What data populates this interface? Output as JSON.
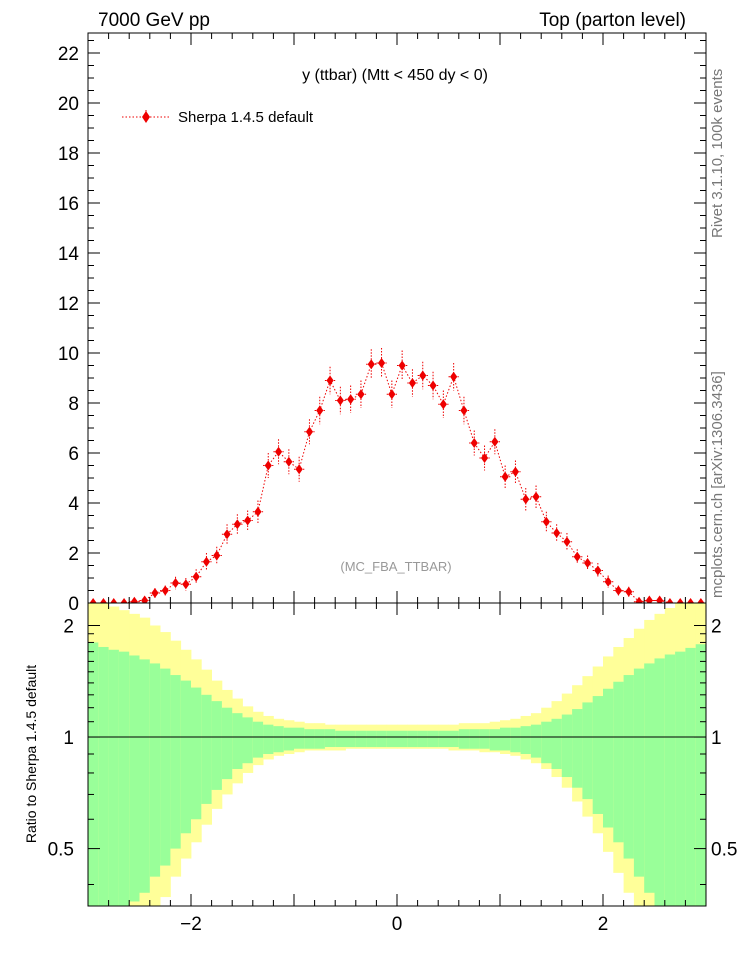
{
  "header": {
    "left": "7000 GeV pp",
    "right": "Top (parton level)"
  },
  "side_text": {
    "rivet": "Rivet 3.1.10,  100k events",
    "source": "mcplots.cern.ch [arXiv:1306.3436]"
  },
  "chart_data": [
    {
      "type": "scatter",
      "title": "y (ttbar) (Mtt < 450 dy < 0)",
      "watermark": "(MC_FBA_TTBAR)",
      "xlim": [
        -3.0,
        3.0
      ],
      "ylim": [
        0,
        22.8
      ],
      "y_ticks": [
        0,
        2,
        4,
        6,
        8,
        10,
        12,
        14,
        16,
        18,
        20,
        22
      ],
      "legend_position": "top-left",
      "series": [
        {
          "name": "Sherpa 1.4.5 default",
          "color": "#ee0000",
          "bin_width": 0.1,
          "x": [
            -2.95,
            -2.85,
            -2.75,
            -2.65,
            -2.55,
            -2.45,
            -2.35,
            -2.25,
            -2.15,
            -2.05,
            -1.95,
            -1.85,
            -1.75,
            -1.65,
            -1.55,
            -1.45,
            -1.35,
            -1.25,
            -1.15,
            -1.05,
            -0.95,
            -0.85,
            -0.75,
            -0.65,
            -0.55,
            -0.45,
            -0.35,
            -0.25,
            -0.15,
            -0.05,
            0.05,
            0.15,
            0.25,
            0.35,
            0.45,
            0.55,
            0.65,
            0.75,
            0.85,
            0.95,
            1.05,
            1.15,
            1.25,
            1.35,
            1.45,
            1.55,
            1.65,
            1.75,
            1.85,
            1.95,
            2.05,
            2.15,
            2.25,
            2.35,
            2.45,
            2.55,
            2.65,
            2.75,
            2.85,
            2.95
          ],
          "y": [
            0.0,
            0.0,
            0.0,
            0.0,
            0.05,
            0.1,
            0.4,
            0.5,
            0.8,
            0.75,
            1.05,
            1.65,
            1.9,
            2.75,
            3.15,
            3.3,
            3.65,
            5.5,
            6.05,
            5.65,
            5.35,
            6.85,
            7.7,
            8.9,
            8.1,
            8.15,
            8.35,
            9.55,
            9.6,
            8.35,
            9.5,
            8.8,
            9.1,
            8.7,
            7.95,
            9.05,
            7.7,
            6.4,
            5.8,
            6.45,
            5.05,
            5.25,
            4.15,
            4.25,
            3.25,
            2.8,
            2.45,
            1.85,
            1.6,
            1.3,
            0.85,
            0.5,
            0.45,
            0.05,
            0.1,
            0.1,
            0.0,
            0.0,
            0.0,
            0.0
          ],
          "yerr": [
            0.05,
            0.05,
            0.05,
            0.05,
            0.1,
            0.15,
            0.2,
            0.2,
            0.25,
            0.25,
            0.3,
            0.35,
            0.35,
            0.4,
            0.4,
            0.4,
            0.45,
            0.5,
            0.5,
            0.5,
            0.5,
            0.5,
            0.55,
            0.55,
            0.55,
            0.55,
            0.55,
            0.6,
            0.6,
            0.55,
            0.6,
            0.55,
            0.55,
            0.55,
            0.55,
            0.55,
            0.55,
            0.5,
            0.5,
            0.5,
            0.45,
            0.45,
            0.45,
            0.45,
            0.4,
            0.35,
            0.35,
            0.3,
            0.3,
            0.3,
            0.25,
            0.2,
            0.2,
            0.1,
            0.1,
            0.1,
            0.05,
            0.05,
            0.05,
            0.05
          ]
        }
      ]
    },
    {
      "type": "area",
      "ylabel": "Ratio to Sherpa 1.4.5 default",
      "xlim": [
        -3.0,
        3.0
      ],
      "ylim": [
        0.35,
        2.3
      ],
      "x_ticks": [
        -2,
        0,
        2
      ],
      "x_tick_labels": [
        "−2",
        "0",
        "2"
      ],
      "y_ticks": [
        0.5,
        1,
        2
      ],
      "y_tick_labels": [
        "0.5",
        "1",
        "2"
      ],
      "reference_line": 1,
      "band_colors": {
        "inner": "#99ff99",
        "outer": "#ffff99"
      },
      "x": [
        -2.95,
        -2.85,
        -2.75,
        -2.65,
        -2.55,
        -2.45,
        -2.35,
        -2.25,
        -2.15,
        -2.05,
        -1.95,
        -1.85,
        -1.75,
        -1.65,
        -1.55,
        -1.45,
        -1.35,
        -1.25,
        -1.15,
        -1.05,
        -0.95,
        -0.85,
        -0.75,
        -0.65,
        -0.55,
        -0.45,
        -0.35,
        -0.25,
        -0.15,
        -0.05,
        0.05,
        0.15,
        0.25,
        0.35,
        0.45,
        0.55,
        0.65,
        0.75,
        0.85,
        0.95,
        1.05,
        1.15,
        1.25,
        1.35,
        1.45,
        1.55,
        1.65,
        1.75,
        1.85,
        1.95,
        2.05,
        2.15,
        2.25,
        2.35,
        2.45,
        2.55,
        2.65,
        2.75,
        2.85,
        2.95
      ],
      "inner_upper": [
        1.8,
        1.75,
        1.72,
        1.7,
        1.66,
        1.62,
        1.58,
        1.53,
        1.47,
        1.42,
        1.36,
        1.3,
        1.25,
        1.2,
        1.16,
        1.13,
        1.1,
        1.08,
        1.07,
        1.06,
        1.06,
        1.05,
        1.05,
        1.05,
        1.04,
        1.04,
        1.04,
        1.04,
        1.04,
        1.04,
        1.04,
        1.04,
        1.04,
        1.04,
        1.04,
        1.04,
        1.05,
        1.05,
        1.05,
        1.05,
        1.06,
        1.06,
        1.07,
        1.08,
        1.1,
        1.12,
        1.15,
        1.19,
        1.24,
        1.29,
        1.35,
        1.41,
        1.47,
        1.53,
        1.58,
        1.63,
        1.67,
        1.7,
        1.74,
        1.78
      ],
      "inner_lower": [
        0.28,
        0.3,
        0.32,
        0.34,
        0.36,
        0.38,
        0.42,
        0.45,
        0.5,
        0.55,
        0.6,
        0.66,
        0.72,
        0.77,
        0.82,
        0.85,
        0.88,
        0.9,
        0.91,
        0.92,
        0.93,
        0.93,
        0.93,
        0.94,
        0.94,
        0.94,
        0.94,
        0.94,
        0.94,
        0.94,
        0.94,
        0.94,
        0.94,
        0.94,
        0.94,
        0.94,
        0.93,
        0.93,
        0.93,
        0.92,
        0.92,
        0.91,
        0.9,
        0.88,
        0.85,
        0.82,
        0.78,
        0.73,
        0.68,
        0.62,
        0.57,
        0.52,
        0.47,
        0.42,
        0.38,
        0.35,
        0.32,
        0.3,
        0.29,
        0.28
      ],
      "outer_upper": [
        2.3,
        2.3,
        2.25,
        2.2,
        2.15,
        2.1,
        2.0,
        1.92,
        1.82,
        1.72,
        1.62,
        1.52,
        1.42,
        1.34,
        1.27,
        1.21,
        1.17,
        1.14,
        1.12,
        1.11,
        1.1,
        1.09,
        1.09,
        1.08,
        1.08,
        1.08,
        1.08,
        1.08,
        1.08,
        1.08,
        1.08,
        1.08,
        1.08,
        1.08,
        1.08,
        1.08,
        1.09,
        1.09,
        1.09,
        1.1,
        1.11,
        1.12,
        1.14,
        1.16,
        1.2,
        1.25,
        1.31,
        1.38,
        1.46,
        1.55,
        1.65,
        1.75,
        1.85,
        1.96,
        2.07,
        2.15,
        2.23,
        2.3,
        2.3,
        2.3
      ],
      "outer_lower": [
        0.25,
        0.25,
        0.25,
        0.25,
        0.27,
        0.3,
        0.33,
        0.37,
        0.42,
        0.47,
        0.52,
        0.58,
        0.64,
        0.7,
        0.75,
        0.8,
        0.84,
        0.87,
        0.89,
        0.9,
        0.91,
        0.92,
        0.92,
        0.92,
        0.92,
        0.93,
        0.93,
        0.93,
        0.93,
        0.93,
        0.93,
        0.93,
        0.93,
        0.93,
        0.93,
        0.92,
        0.92,
        0.92,
        0.91,
        0.91,
        0.9,
        0.89,
        0.87,
        0.85,
        0.82,
        0.78,
        0.73,
        0.67,
        0.61,
        0.55,
        0.49,
        0.43,
        0.38,
        0.33,
        0.3,
        0.27,
        0.25,
        0.25,
        0.25,
        0.25
      ]
    }
  ]
}
